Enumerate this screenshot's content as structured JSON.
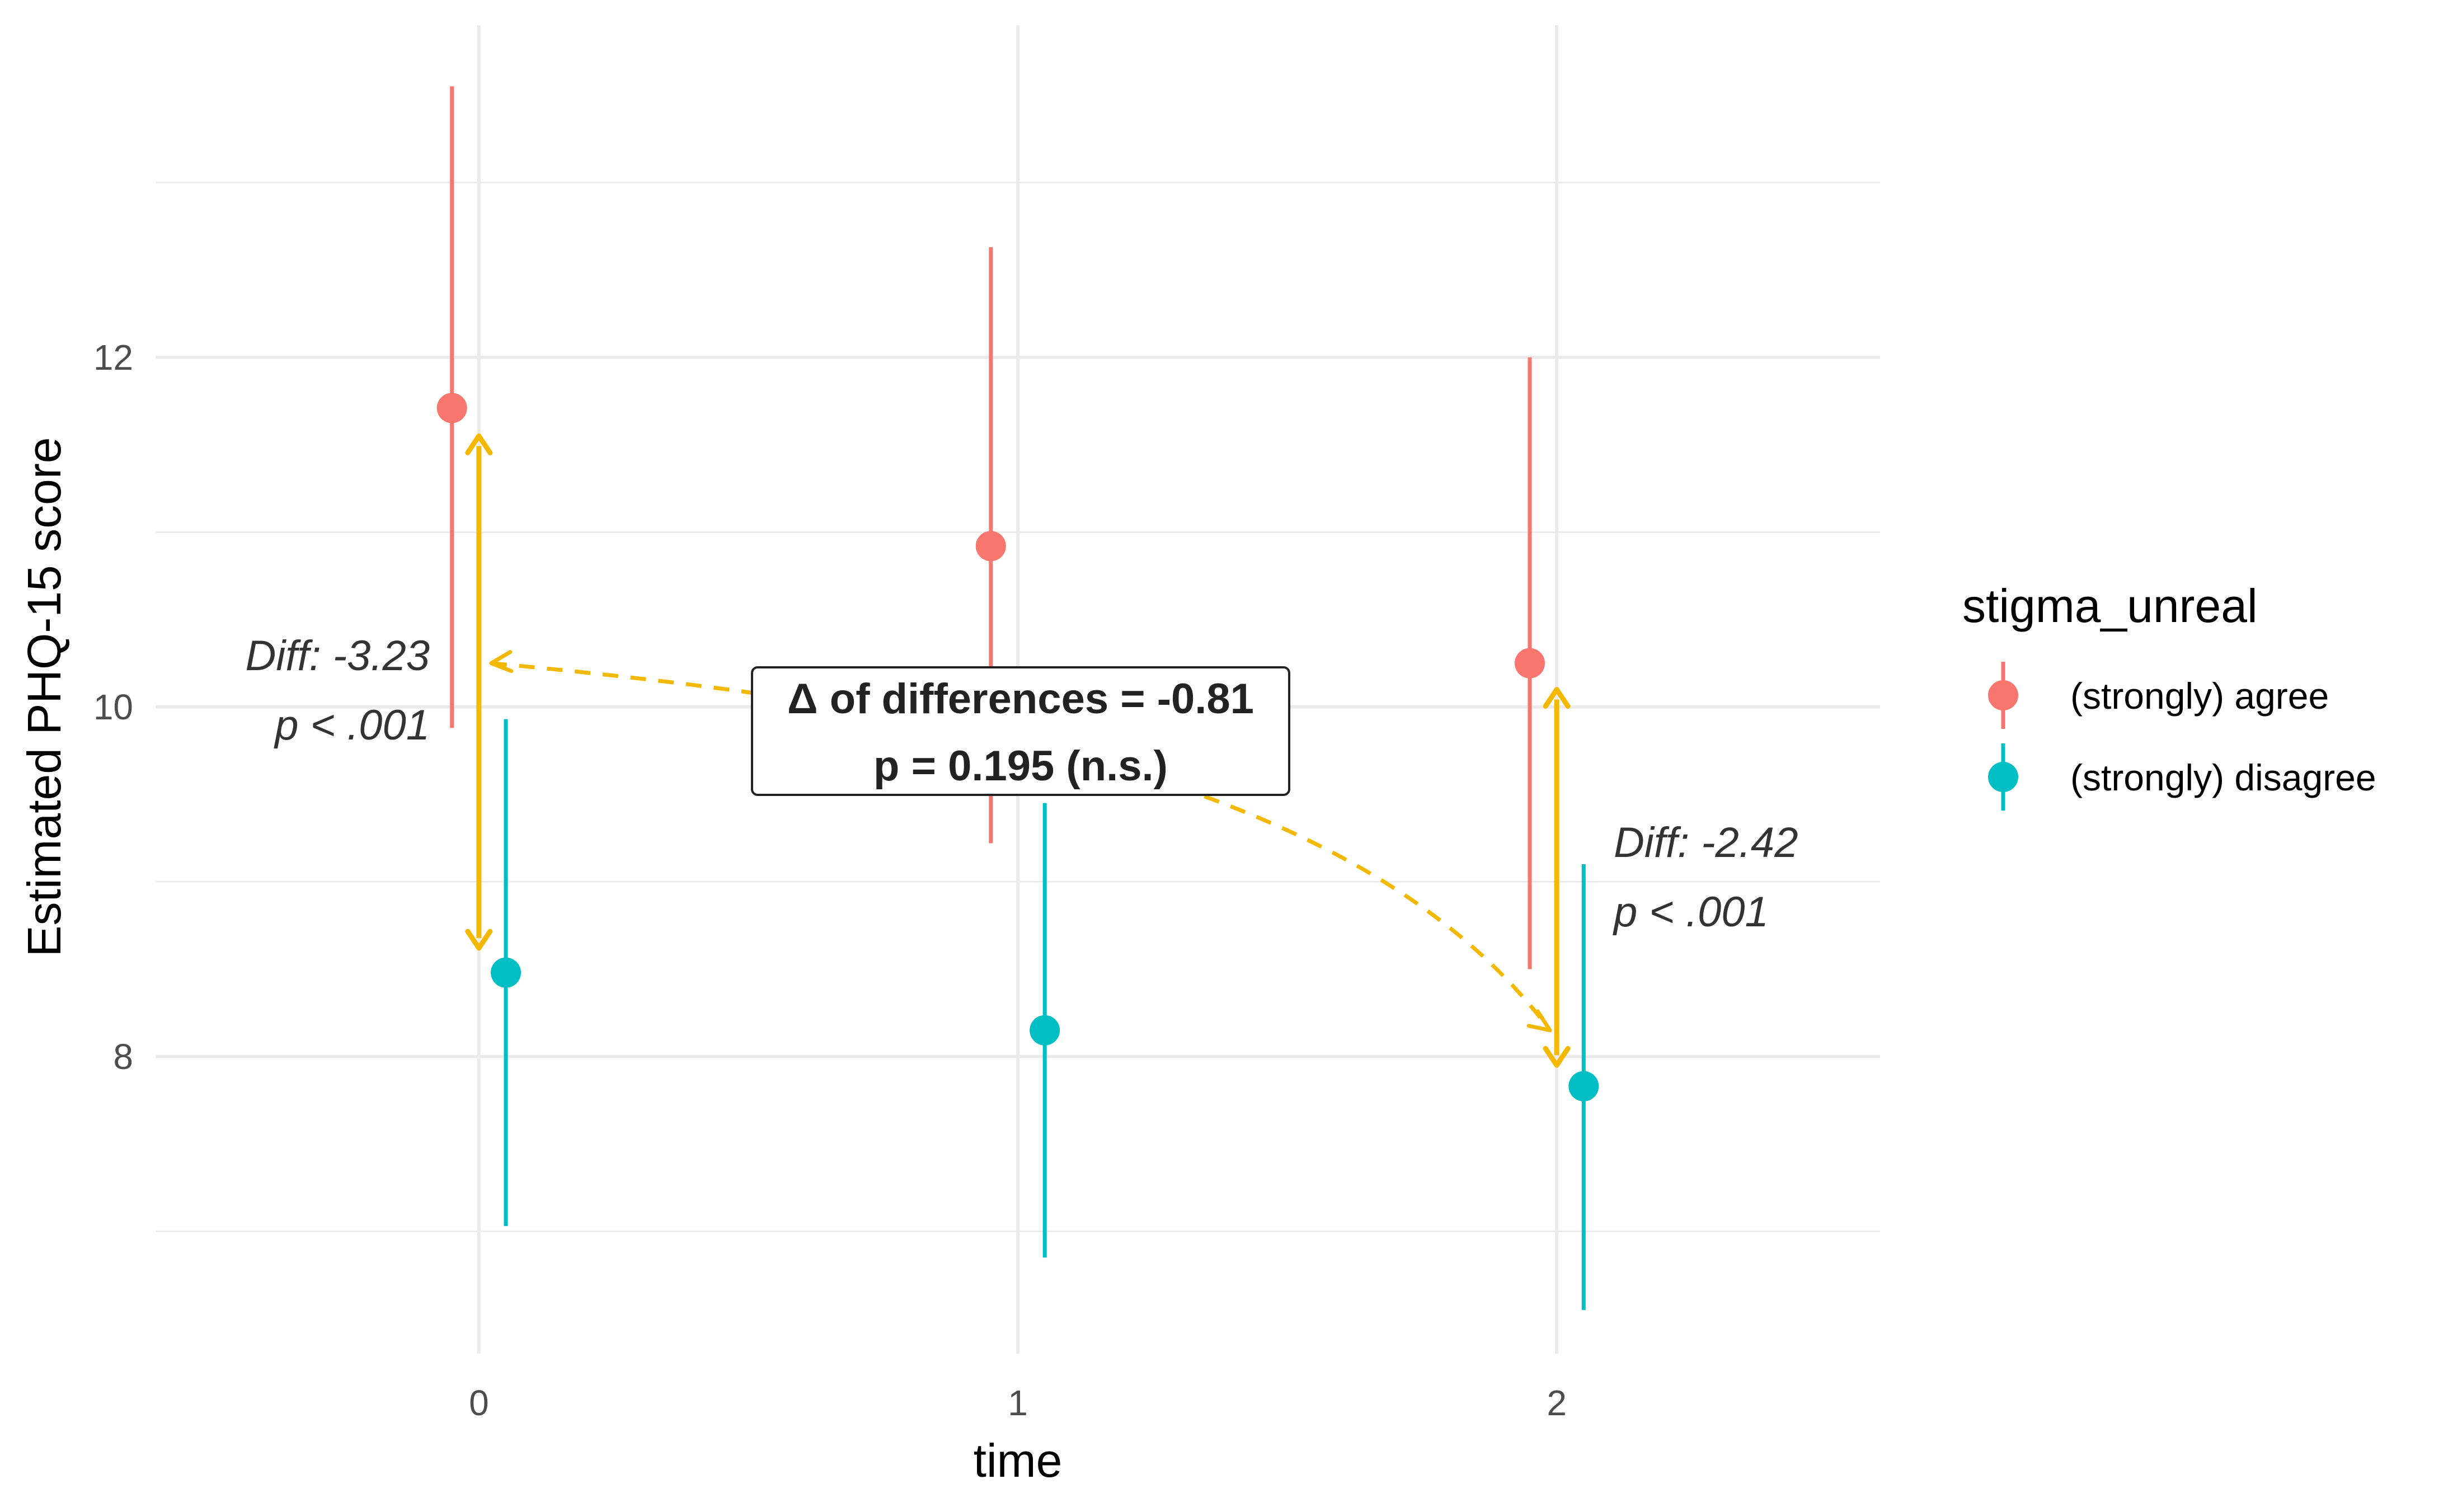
{
  "chart_data": {
    "type": "scatter",
    "subtype": "pointrange with annotations",
    "title": "",
    "xlabel": "time",
    "ylabel": "Estimated PHQ-15 score",
    "categories": [
      "0",
      "1",
      "2"
    ],
    "xlim": [
      -0.6,
      2.6
    ],
    "ylim": [
      6.3,
      13.9
    ],
    "y_ticks": [
      8,
      10,
      12
    ],
    "grid": true,
    "legend": {
      "title": "stigma_unreal",
      "position": "right"
    },
    "series": [
      {
        "name": "(strongly) agree",
        "color": "#F8766D",
        "x": [
          0,
          1,
          2
        ],
        "y": [
          11.71,
          10.92,
          10.25
        ],
        "lower": [
          9.88,
          9.22,
          8.5
        ],
        "upper": [
          13.55,
          12.63,
          12.0
        ]
      },
      {
        "name": "(strongly) disagree",
        "color": "#00BFC4",
        "x": [
          0,
          1,
          2
        ],
        "y": [
          8.48,
          8.15,
          7.83
        ],
        "lower": [
          7.03,
          6.85,
          6.55
        ],
        "upper": [
          9.93,
          9.45,
          9.1
        ]
      }
    ],
    "annotations": {
      "accent_color": "#F5B800",
      "diff_left": {
        "line1": "Diff: -3.23",
        "line2": "p < .001",
        "x": 0,
        "from": 11.55,
        "to": 8.62
      },
      "diff_right": {
        "line1": "Diff: -2.42",
        "line2": "p < .001",
        "x": 2,
        "from": 10.1,
        "to": 7.95
      },
      "box": {
        "line1": "Δ of differences = -0.81",
        "line2": "p = 0.195 (n.s.)"
      }
    }
  }
}
